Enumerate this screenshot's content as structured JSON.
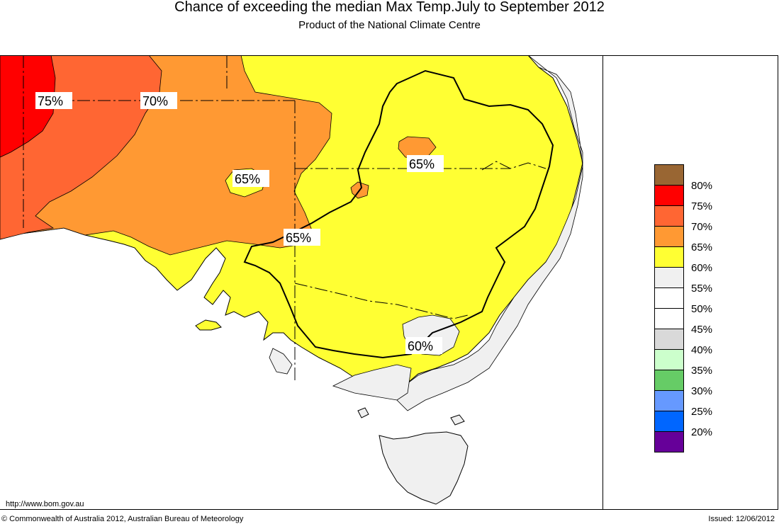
{
  "header": {
    "title": "Chance of exceeding the median Max Temp.July to September 2012",
    "subtitle": "Product of the National Climate Centre"
  },
  "map": {
    "contour_labels": [
      "75%",
      "70%",
      "65%",
      "65%",
      "65%",
      "60%"
    ],
    "colors": {
      "c75": "#ff0000",
      "c70": "#ff6633",
      "c65": "#ff9933",
      "c60": "#ffff33",
      "c55": "#f0f0f0",
      "ocean": "#ffffff"
    }
  },
  "legend": {
    "items": [
      {
        "label": "80%",
        "color": "#996633"
      },
      {
        "label": "75%",
        "color": "#ff0000"
      },
      {
        "label": "70%",
        "color": "#ff6633"
      },
      {
        "label": "65%",
        "color": "#ff9933"
      },
      {
        "label": "60%",
        "color": "#ffff33"
      },
      {
        "label": "55%",
        "color": "#f0f0f0"
      },
      {
        "label": "50%",
        "color": "#ffffff"
      },
      {
        "label": "45%",
        "color": "#ffffff"
      },
      {
        "label": "40%",
        "color": "#d9d9d9"
      },
      {
        "label": "35%",
        "color": "#ccffcc"
      },
      {
        "label": "30%",
        "color": "#66cc66"
      },
      {
        "label": "25%",
        "color": "#6699ff"
      },
      {
        "label": "20%",
        "color": "#0066ff"
      },
      {
        "label": "",
        "color": "#660099"
      }
    ]
  },
  "footer": {
    "url": "http://www.bom.gov.au",
    "copyright": "© Commonwealth of Australia 2012, Australian Bureau of Meteorology",
    "issued": "Issued: 12/06/2012"
  }
}
